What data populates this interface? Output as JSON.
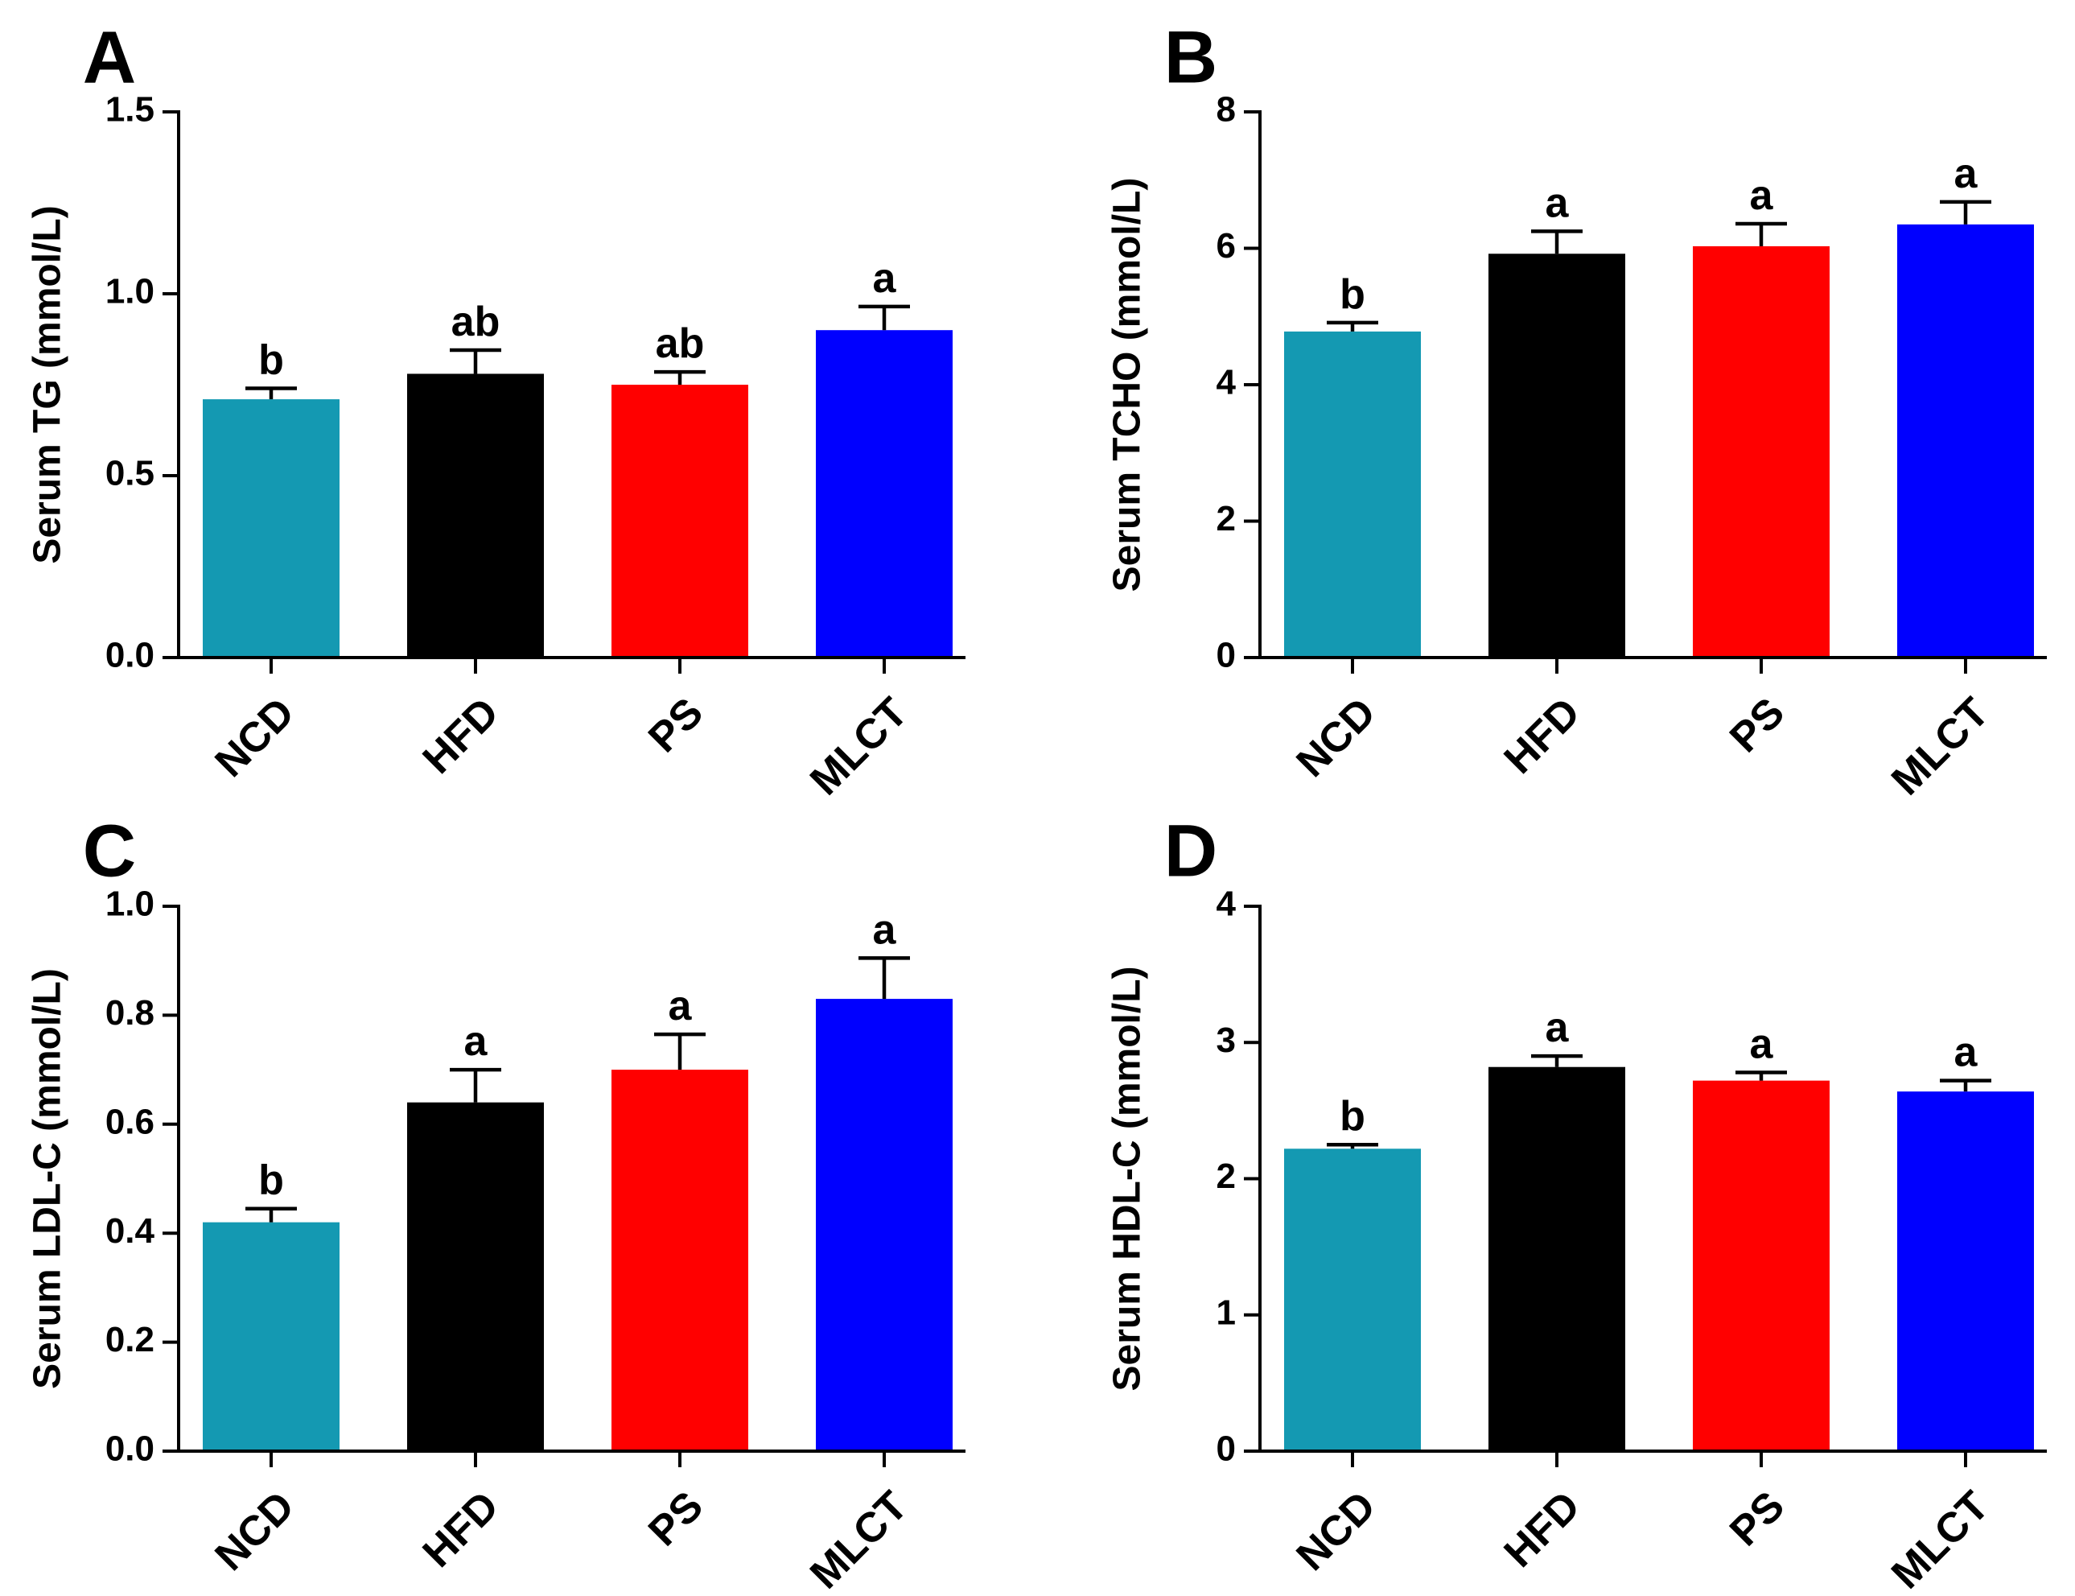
{
  "colors": {
    "NCD": "#1499b2",
    "HFD": "#000000",
    "PS": "#ff0000",
    "MLCT": "#0000ff"
  },
  "chart_data": [
    {
      "panel": "A",
      "type": "bar",
      "categories": [
        "NCD",
        "HFD",
        "PS",
        "MLCT"
      ],
      "values": [
        0.71,
        0.78,
        0.75,
        0.9
      ],
      "errors": [
        0.03,
        0.065,
        0.035,
        0.065
      ],
      "significance": [
        "b",
        "ab",
        "ab",
        "a"
      ],
      "ylabel": "Serum TG (mmol/L)",
      "ylim": [
        0,
        1.5
      ],
      "yticks": [
        "0.0",
        "0.5",
        "1.0",
        "1.5"
      ],
      "ytick_values": [
        0,
        0.5,
        1.0,
        1.5
      ]
    },
    {
      "panel": "B",
      "type": "bar",
      "categories": [
        "NCD",
        "HFD",
        "PS",
        "MLCT"
      ],
      "values": [
        4.78,
        5.92,
        6.03,
        6.35
      ],
      "errors": [
        0.13,
        0.33,
        0.33,
        0.33
      ],
      "significance": [
        "b",
        "a",
        "a",
        "a"
      ],
      "ylabel": "Serum TCHO (mmol/L)",
      "ylim": [
        0,
        8
      ],
      "yticks": [
        "0",
        "2",
        "4",
        "6",
        "8"
      ],
      "ytick_values": [
        0,
        2,
        4,
        6,
        8
      ]
    },
    {
      "panel": "C",
      "type": "bar",
      "categories": [
        "NCD",
        "HFD",
        "PS",
        "MLCT"
      ],
      "values": [
        0.42,
        0.64,
        0.7,
        0.83
      ],
      "errors": [
        0.025,
        0.06,
        0.065,
        0.075
      ],
      "significance": [
        "b",
        "a",
        "a",
        "a"
      ],
      "ylabel": "Serum LDL-C (mmol/L)",
      "ylim": [
        0,
        1.0
      ],
      "yticks": [
        "0.0",
        "0.2",
        "0.4",
        "0.6",
        "0.8",
        "1.0"
      ],
      "ytick_values": [
        0,
        0.2,
        0.4,
        0.6,
        0.8,
        1.0
      ]
    },
    {
      "panel": "D",
      "type": "bar",
      "categories": [
        "NCD",
        "HFD",
        "PS",
        "MLCT"
      ],
      "values": [
        2.22,
        2.82,
        2.72,
        2.64
      ],
      "errors": [
        0.03,
        0.08,
        0.06,
        0.08
      ],
      "significance": [
        "b",
        "a",
        "a",
        "a"
      ],
      "ylabel": "Serum HDL-C (mmol/L)",
      "ylim": [
        0,
        4
      ],
      "yticks": [
        "0",
        "1",
        "2",
        "3",
        "4"
      ],
      "ytick_values": [
        0,
        1,
        2,
        3,
        4
      ]
    }
  ]
}
